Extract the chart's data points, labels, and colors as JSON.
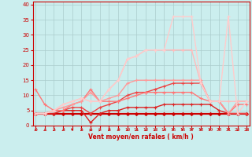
{
  "x": [
    0,
    1,
    2,
    3,
    4,
    5,
    6,
    7,
    8,
    9,
    10,
    11,
    12,
    13,
    14,
    15,
    16,
    17,
    18,
    19,
    20,
    21,
    22,
    23
  ],
  "series": [
    {
      "color": "#cc0000",
      "lw": 1.6,
      "marker": "D",
      "ms": 2.0,
      "values": [
        4,
        4,
        4,
        4,
        4,
        4,
        4,
        4,
        4,
        4,
        4,
        4,
        4,
        4,
        4,
        4,
        4,
        4,
        4,
        4,
        4,
        4,
        4,
        4
      ]
    },
    {
      "color": "#dd2222",
      "lw": 1.0,
      "marker": "+",
      "ms": 3.0,
      "values": [
        4,
        4,
        4,
        5,
        5,
        5,
        1,
        4,
        5,
        5,
        6,
        6,
        6,
        6,
        7,
        7,
        7,
        7,
        7,
        7,
        5,
        4,
        4,
        4
      ]
    },
    {
      "color": "#ee4444",
      "lw": 1.0,
      "marker": "+",
      "ms": 3.0,
      "values": [
        4,
        4,
        5,
        5,
        6,
        6,
        4,
        6,
        7,
        8,
        10,
        11,
        11,
        12,
        13,
        14,
        14,
        14,
        14,
        8,
        8,
        4,
        4,
        4
      ]
    },
    {
      "color": "#ff7777",
      "lw": 1.0,
      "marker": "+",
      "ms": 3.0,
      "values": [
        12,
        7,
        5,
        5,
        7,
        8,
        12,
        8,
        8,
        8,
        9,
        10,
        11,
        11,
        11,
        11,
        11,
        11,
        9,
        8,
        8,
        4,
        7,
        7
      ]
    },
    {
      "color": "#ff9999",
      "lw": 1.0,
      "marker": "+",
      "ms": 3.0,
      "values": [
        4,
        4,
        5,
        6,
        7,
        8,
        11,
        8,
        9,
        10,
        14,
        15,
        15,
        15,
        15,
        15,
        15,
        15,
        15,
        8,
        8,
        4,
        8,
        8
      ]
    },
    {
      "color": "#ffbbbb",
      "lw": 1.0,
      "marker": "+",
      "ms": 3.0,
      "values": [
        4,
        4,
        5,
        7,
        8,
        9,
        8,
        8,
        12,
        15,
        22,
        23,
        25,
        25,
        25,
        25,
        25,
        25,
        14,
        8,
        8,
        8,
        8,
        8
      ]
    },
    {
      "color": "#ffcccc",
      "lw": 1.0,
      "marker": "+",
      "ms": 3.0,
      "values": [
        4,
        4,
        5,
        7,
        8,
        9,
        8,
        8,
        12,
        15,
        22,
        23,
        25,
        25,
        25,
        36,
        36,
        36,
        14,
        8,
        8,
        36,
        4,
        8
      ]
    }
  ],
  "xlabel": "Vent moyen/en rafales ( km/h )",
  "xlim": [
    -0.3,
    23.3
  ],
  "ylim": [
    0,
    41
  ],
  "yticks": [
    0,
    5,
    10,
    15,
    20,
    25,
    30,
    35,
    40
  ],
  "xtick_labels": [
    "0",
    "1",
    "2",
    "3",
    "4",
    "5",
    "6",
    "7",
    "8",
    "9",
    "10",
    "11",
    "12",
    "13",
    "14",
    "15",
    "16",
    "17",
    "18",
    "19",
    "20",
    "21",
    "22",
    "23"
  ],
  "bg_color": "#cbeeee",
  "grid_color": "#aacccc",
  "label_color": "#cc0000",
  "spine_color": "#cc0000"
}
